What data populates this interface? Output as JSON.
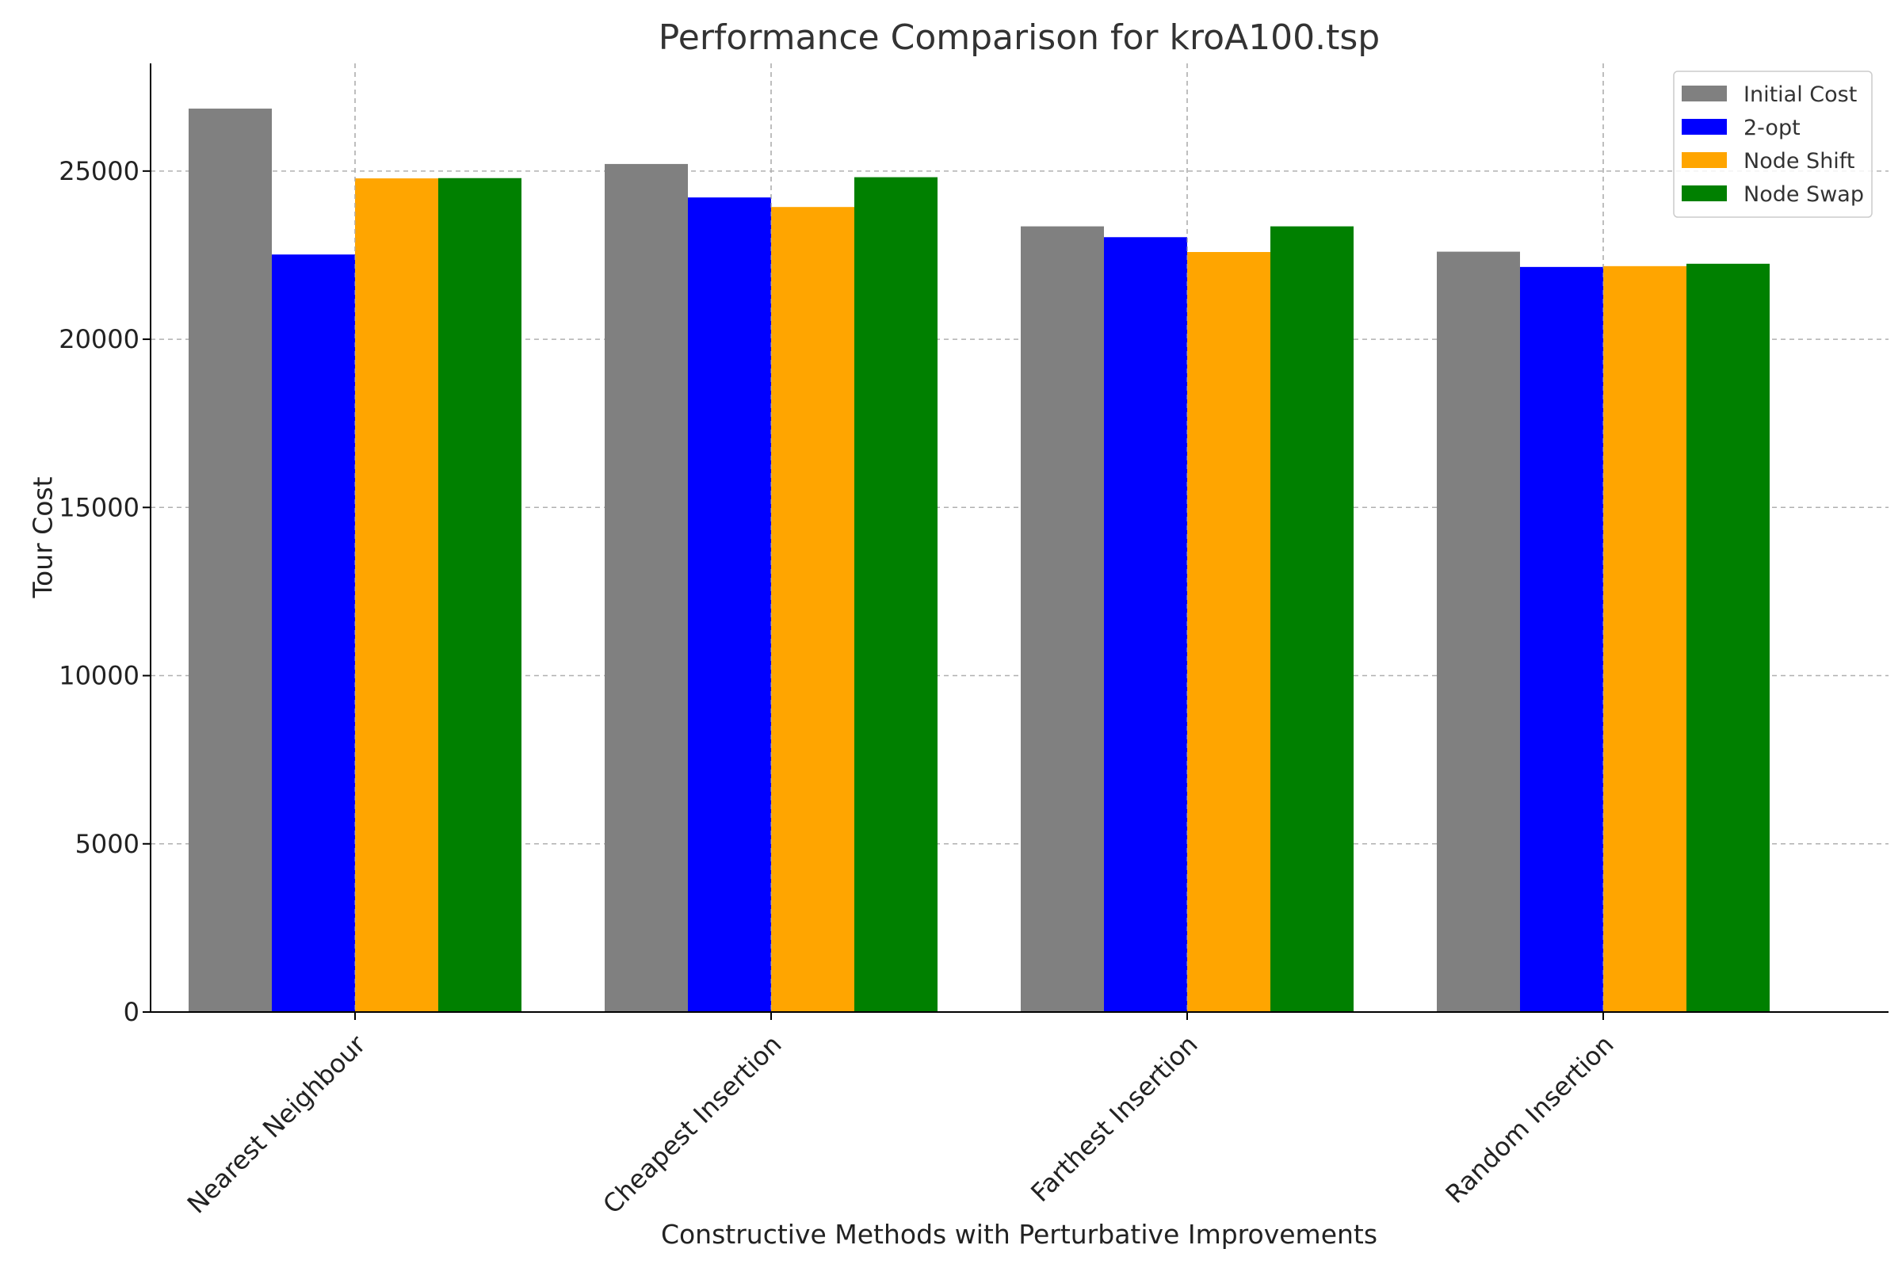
{
  "chart_data": {
    "type": "bar",
    "title": "Performance Comparison for kroA100.tsp",
    "xlabel": "Constructive Methods with Perturbative Improvements",
    "ylabel": "Tour Cost",
    "categories": [
      "Nearest Neighbour",
      "Cheapest Insertion",
      "Farthest Insertion",
      "Random Insertion"
    ],
    "series": [
      {
        "name": "Initial Cost",
        "color": "#808080",
        "values": [
          26856,
          25210,
          23356,
          22603
        ]
      },
      {
        "name": "2-opt",
        "color": "#0000ff",
        "values": [
          22519,
          24215,
          23034,
          22149
        ]
      },
      {
        "name": "Node Shift",
        "color": "#ffa500",
        "values": [
          24782,
          23931,
          22593,
          22173
        ]
      },
      {
        "name": "Node Swap",
        "color": "#008000",
        "values": [
          24790,
          24817,
          23356,
          22244
        ]
      }
    ],
    "ylim": [
      0,
      28200
    ],
    "yticks": [
      0,
      5000,
      10000,
      15000,
      20000,
      25000
    ],
    "grid": true,
    "legend_position": "top-right"
  }
}
